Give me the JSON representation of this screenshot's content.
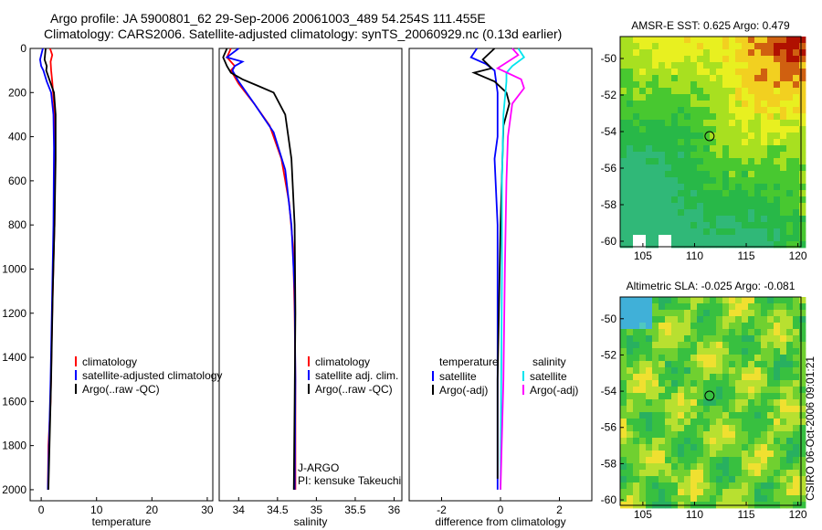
{
  "header": {
    "line1": "Argo profile: JA 5900801_62 29-Sep-2006 20061003_489 54.254S 111.455E",
    "line2": "Climatology: CARS2006. Satellite-adjusted climatology: synTS_20060929.nc (0.13d earlier)"
  },
  "side_label": "CSIRO 06-Oct-2006 09:01:21",
  "colors": {
    "climatology": "#ff0000",
    "satellite": "#0000ff",
    "argo": "#000000",
    "sat_salinity": "#00e5ee",
    "argo_salinity": "#ff00ff"
  },
  "chart_data": [
    {
      "type": "line",
      "id": "temperature",
      "xlabel": "temperature",
      "xlim": [
        -2,
        31
      ],
      "ylim": [
        2050,
        0
      ],
      "xticks": [
        "0",
        "10",
        "20",
        "30"
      ],
      "xtick_values": [
        0,
        10,
        20,
        30
      ],
      "yticks": [
        "0",
        "200",
        "400",
        "600",
        "800",
        "1000",
        "1200",
        "1400",
        "1600",
        "1800",
        "2000"
      ],
      "ytick_values": [
        0,
        200,
        400,
        600,
        800,
        1000,
        1200,
        1400,
        1600,
        1800,
        2000
      ],
      "legend": [
        "climatology",
        "satellite-adjusted climatology",
        "Argo(..raw -QC)"
      ],
      "series": [
        {
          "name": "climatology",
          "color": "#ff0000",
          "points": [
            [
              1.6,
              0
            ],
            [
              2.0,
              30
            ],
            [
              1.7,
              60
            ],
            [
              1.8,
              100
            ],
            [
              2.0,
              150
            ],
            [
              2.3,
              250
            ],
            [
              2.4,
              400
            ],
            [
              2.4,
              800
            ],
            [
              2.3,
              880
            ],
            [
              2.0,
              1200
            ],
            [
              1.7,
              1600
            ],
            [
              1.3,
              1800
            ],
            [
              1.2,
              2000
            ]
          ]
        },
        {
          "name": "satellite-adjusted climatology",
          "color": "#0000ff",
          "points": [
            [
              0.3,
              0
            ],
            [
              -0.2,
              50
            ],
            [
              0.0,
              80
            ],
            [
              0.4,
              100
            ],
            [
              1.0,
              150
            ],
            [
              1.8,
              200
            ],
            [
              2.2,
              300
            ],
            [
              2.3,
              450
            ],
            [
              2.2,
              800
            ],
            [
              2.0,
              1100
            ],
            [
              1.7,
              1500
            ],
            [
              1.4,
              1800
            ],
            [
              1.2,
              2000
            ]
          ]
        },
        {
          "name": "Argo(..raw -QC)",
          "color": "#000000",
          "points": [
            [
              0.8,
              0
            ],
            [
              0.6,
              50
            ],
            [
              1.0,
              80
            ],
            [
              0.9,
              100
            ],
            [
              1.6,
              150
            ],
            [
              2.3,
              200
            ],
            [
              2.6,
              300
            ],
            [
              2.6,
              500
            ],
            [
              2.4,
              800
            ],
            [
              2.1,
              1100
            ],
            [
              1.8,
              1500
            ],
            [
              1.5,
              1800
            ],
            [
              1.3,
              2000
            ]
          ]
        }
      ]
    },
    {
      "type": "line",
      "id": "salinity",
      "xlabel": "salinity",
      "xlim": [
        33.75,
        36.1
      ],
      "ylim": [
        2050,
        0
      ],
      "xticks": [
        "34",
        "34.5",
        "35",
        "35.5",
        "36"
      ],
      "xtick_values": [
        34,
        34.5,
        35,
        35.5,
        36
      ],
      "legend": [
        "climatology",
        "satellite adj. clim.",
        "Argo(..raw -QC)"
      ],
      "annotation": [
        "J-ARGO",
        "PI: kensuke Takeuchi"
      ],
      "series": [
        {
          "name": "climatology",
          "color": "#ff0000",
          "points": [
            [
              33.9,
              0
            ],
            [
              33.85,
              40
            ],
            [
              33.95,
              80
            ],
            [
              33.9,
              100
            ],
            [
              34.0,
              160
            ],
            [
              34.2,
              250
            ],
            [
              34.4,
              350
            ],
            [
              34.55,
              500
            ],
            [
              34.65,
              700
            ],
            [
              34.7,
              900
            ],
            [
              34.72,
              1200
            ],
            [
              34.73,
              1500
            ],
            [
              34.73,
              2000
            ]
          ]
        },
        {
          "name": "satellite adj. clim.",
          "color": "#0000ff",
          "points": [
            [
              34.0,
              0
            ],
            [
              33.85,
              40
            ],
            [
              34.05,
              60
            ],
            [
              33.95,
              80
            ],
            [
              33.92,
              100
            ],
            [
              34.0,
              150
            ],
            [
              34.2,
              250
            ],
            [
              34.45,
              380
            ],
            [
              34.6,
              550
            ],
            [
              34.68,
              800
            ],
            [
              34.72,
              1100
            ],
            [
              34.73,
              1500
            ],
            [
              34.72,
              2000
            ]
          ]
        },
        {
          "name": "Argo(..raw -QC)",
          "color": "#000000",
          "points": [
            [
              33.85,
              0
            ],
            [
              33.8,
              40
            ],
            [
              33.85,
              80
            ],
            [
              33.9,
              110
            ],
            [
              34.05,
              140
            ],
            [
              34.25,
              170
            ],
            [
              34.45,
              200
            ],
            [
              34.6,
              300
            ],
            [
              34.68,
              500
            ],
            [
              34.72,
              800
            ],
            [
              34.73,
              1200
            ],
            [
              34.72,
              1600
            ],
            [
              34.71,
              2000
            ]
          ]
        }
      ]
    },
    {
      "type": "line",
      "id": "difference",
      "xlabel": "difference from climatology",
      "xlim": [
        -3.1,
        3.1
      ],
      "ylim": [
        2050,
        0
      ],
      "xticks": [
        "-2",
        "0",
        "2"
      ],
      "xtick_values": [
        -2,
        0,
        2
      ],
      "legend": [
        {
          "title": "temperature",
          "items": [
            "satellite",
            "Argo(-adj)"
          ]
        },
        {
          "title": "salinity",
          "items": [
            "satellite",
            "Argo(-adj)"
          ]
        }
      ],
      "series": [
        {
          "name": "temperature satellite",
          "color": "#0000ff",
          "points": [
            [
              -0.8,
              0
            ],
            [
              -1.0,
              40
            ],
            [
              -0.5,
              70
            ],
            [
              -0.2,
              100
            ],
            [
              -0.1,
              200
            ],
            [
              -0.1,
              400
            ],
            [
              -0.2,
              500
            ],
            [
              -0.1,
              800
            ],
            [
              -0.1,
              1200
            ],
            [
              -0.1,
              2000
            ]
          ]
        },
        {
          "name": "temperature Argo(-adj)",
          "color": "#000000",
          "points": [
            [
              -0.2,
              0
            ],
            [
              -0.6,
              50
            ],
            [
              -0.3,
              90
            ],
            [
              -0.9,
              110
            ],
            [
              -0.2,
              150
            ],
            [
              0.2,
              200
            ],
            [
              0.3,
              250
            ],
            [
              0.1,
              350
            ],
            [
              0.0,
              800
            ],
            [
              -0.1,
              1500
            ],
            [
              -0.1,
              1950
            ]
          ]
        },
        {
          "name": "salinity satellite",
          "color": "#00e5ee",
          "points": [
            [
              0.6,
              0
            ],
            [
              0.8,
              40
            ],
            [
              0.4,
              80
            ],
            [
              0.2,
              110
            ],
            [
              0.2,
              150
            ],
            [
              0.1,
              300
            ],
            [
              0.05,
              600
            ],
            [
              0.05,
              1000
            ],
            [
              0.0,
              2000
            ]
          ]
        },
        {
          "name": "salinity Argo(-adj)",
          "color": "#ff00ff",
          "points": [
            [
              0.4,
              0
            ],
            [
              0.6,
              30
            ],
            [
              -0.1,
              90
            ],
            [
              0.7,
              140
            ],
            [
              0.8,
              180
            ],
            [
              0.4,
              250
            ],
            [
              0.25,
              400
            ],
            [
              0.2,
              600
            ],
            [
              0.15,
              1000
            ],
            [
              0.1,
              1500
            ],
            [
              0.0,
              2000
            ]
          ]
        }
      ]
    },
    {
      "type": "heatmap",
      "id": "sst",
      "title": "AMSR-E SST: 0.625 Argo: 0.479",
      "xlim": [
        102.8,
        120.3
      ],
      "ylim": [
        -60.3,
        -48.8
      ],
      "xticks": [
        "105",
        "110",
        "115",
        "120"
      ],
      "xtick_values": [
        105,
        110,
        115,
        120
      ],
      "yticks": [
        "-50",
        "-52",
        "-54",
        "-56",
        "-58",
        "-60"
      ],
      "ytick_values": [
        -50,
        -52,
        -54,
        -56,
        -58,
        -60
      ],
      "marker": [
        111.45,
        -54.25
      ]
    },
    {
      "type": "heatmap",
      "id": "sla",
      "title": "Altimetric SLA: -0.025 Argo: -0.081",
      "xlim": [
        102.8,
        120.3
      ],
      "ylim": [
        -60.3,
        -48.8
      ],
      "xticks": [
        "105",
        "110",
        "115",
        "120"
      ],
      "xtick_values": [
        105,
        110,
        115,
        120
      ],
      "yticks": [
        "-50",
        "-52",
        "-54",
        "-56",
        "-58",
        "-60"
      ],
      "ytick_values": [
        -50,
        -52,
        -54,
        -56,
        -58,
        -60
      ],
      "marker": [
        111.45,
        -54.25
      ]
    }
  ]
}
